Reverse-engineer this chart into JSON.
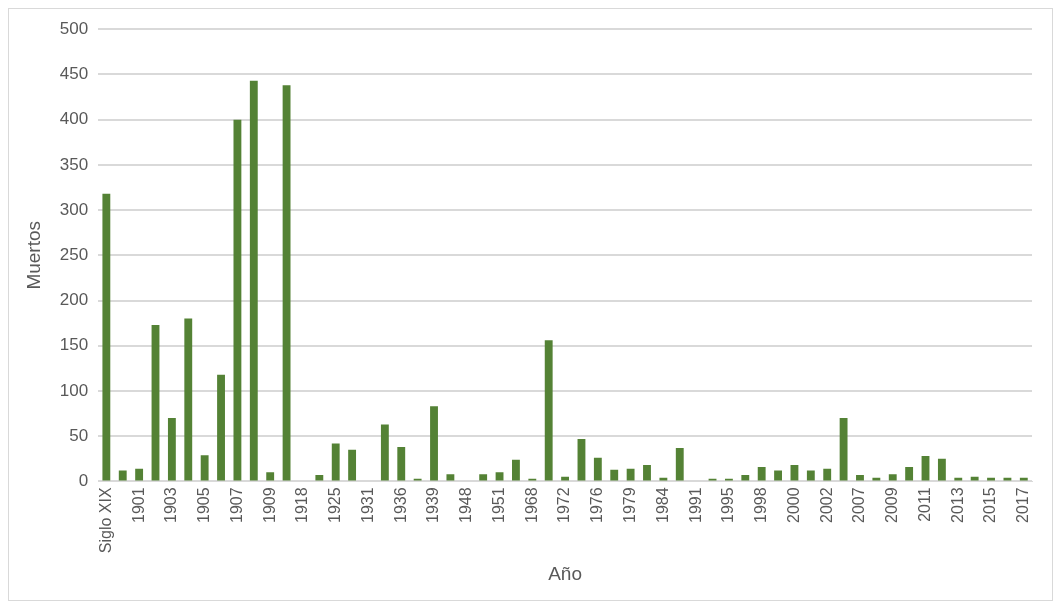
{
  "chart_data": {
    "type": "bar",
    "xlabel": "Año",
    "ylabel": "Muertos",
    "categories": [
      "Siglo XIX",
      null,
      "1901",
      null,
      "1903",
      null,
      "1905",
      null,
      "1907",
      null,
      "1909",
      null,
      "1918",
      null,
      "1925",
      null,
      "1931",
      null,
      "1936",
      null,
      "1939",
      null,
      "1948",
      null,
      "1951",
      null,
      "1968",
      null,
      "1972",
      null,
      "1976",
      null,
      "1979",
      null,
      "1984",
      null,
      "1991",
      null,
      "1995",
      null,
      "1998",
      null,
      "2000",
      null,
      "2002",
      null,
      "2007",
      null,
      "2009",
      null,
      "2011",
      null,
      "2013",
      null,
      "2015",
      null,
      "2017"
    ],
    "values": [
      318,
      12,
      14,
      173,
      70,
      180,
      29,
      118,
      400,
      443,
      10,
      438,
      null,
      7,
      42,
      35,
      null,
      63,
      38,
      3,
      83,
      8,
      null,
      8,
      10,
      24,
      3,
      156,
      5,
      47,
      26,
      13,
      14,
      18,
      4,
      37,
      null,
      3,
      3,
      7,
      16,
      12,
      18,
      12,
      14,
      70,
      7,
      4,
      8,
      16,
      28,
      25,
      4,
      5,
      4,
      4,
      4
    ],
    "color": "#548235",
    "ylim": [
      0,
      500
    ],
    "yticks": [
      0,
      50,
      100,
      150,
      200,
      250,
      300,
      350,
      400,
      450,
      500
    ],
    "grid": "y"
  }
}
